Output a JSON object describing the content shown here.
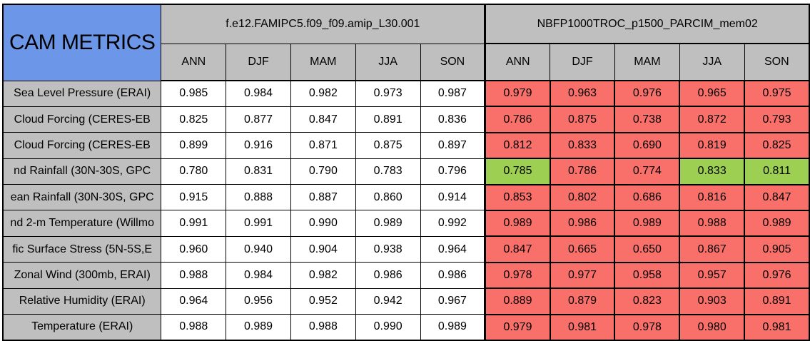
{
  "chart_data": {
    "type": "table",
    "title": "CAM METRICS",
    "column_groups": [
      "f.e12.FAMIPC5.f09_f09.amip_L30.001",
      "NBFP1000TROC_p1500_PARCIM_mem02"
    ],
    "seasons": [
      "ANN",
      "DJF",
      "MAM",
      "JJA",
      "SON"
    ],
    "colors": {
      "corner_blue": "#6C96E8",
      "header_gray": "#BFBFBF",
      "highlight_red": "#F9706A",
      "highlight_green": "#9DCF53",
      "neutral_white": "#FFFFFF"
    },
    "rows": [
      {
        "label": "Sea Level Pressure (ERAI)",
        "run1": [
          "0.985",
          "0.984",
          "0.982",
          "0.973",
          "0.987"
        ],
        "run2": [
          "0.979",
          "0.963",
          "0.976",
          "0.965",
          "0.975"
        ],
        "run2_status": [
          "red",
          "red",
          "red",
          "red",
          "red"
        ]
      },
      {
        "label": "Cloud Forcing (CERES-EB",
        "run1": [
          "0.825",
          "0.877",
          "0.847",
          "0.891",
          "0.836"
        ],
        "run2": [
          "0.786",
          "0.875",
          "0.738",
          "0.872",
          "0.793"
        ],
        "run2_status": [
          "red",
          "red",
          "red",
          "red",
          "red"
        ]
      },
      {
        "label": "Cloud Forcing (CERES-EB",
        "run1": [
          "0.899",
          "0.916",
          "0.871",
          "0.875",
          "0.897"
        ],
        "run2": [
          "0.812",
          "0.833",
          "0.690",
          "0.819",
          "0.825"
        ],
        "run2_status": [
          "red",
          "red",
          "red",
          "red",
          "red"
        ]
      },
      {
        "label": "nd Rainfall (30N-30S, GPC",
        "run1": [
          "0.780",
          "0.831",
          "0.790",
          "0.783",
          "0.796"
        ],
        "run2": [
          "0.785",
          "0.786",
          "0.774",
          "0.833",
          "0.811"
        ],
        "run2_status": [
          "green",
          "red",
          "red",
          "green",
          "green"
        ]
      },
      {
        "label": "ean Rainfall (30N-30S, GPC",
        "run1": [
          "0.915",
          "0.888",
          "0.887",
          "0.860",
          "0.914"
        ],
        "run2": [
          "0.853",
          "0.802",
          "0.686",
          "0.816",
          "0.847"
        ],
        "run2_status": [
          "red",
          "red",
          "red",
          "red",
          "red"
        ]
      },
      {
        "label": "nd 2-m Temperature (Willmo",
        "run1": [
          "0.991",
          "0.991",
          "0.990",
          "0.989",
          "0.992"
        ],
        "run2": [
          "0.989",
          "0.986",
          "0.989",
          "0.988",
          "0.989"
        ],
        "run2_status": [
          "red",
          "red",
          "red",
          "red",
          "red"
        ]
      },
      {
        "label": "fic Surface Stress (5N-5S,E",
        "run1": [
          "0.960",
          "0.940",
          "0.904",
          "0.938",
          "0.964"
        ],
        "run2": [
          "0.847",
          "0.665",
          "0.650",
          "0.867",
          "0.905"
        ],
        "run2_status": [
          "red",
          "red",
          "red",
          "red",
          "red"
        ]
      },
      {
        "label": "Zonal Wind (300mb, ERAI)",
        "run1": [
          "0.988",
          "0.984",
          "0.982",
          "0.986",
          "0.986"
        ],
        "run2": [
          "0.978",
          "0.977",
          "0.958",
          "0.957",
          "0.976"
        ],
        "run2_status": [
          "red",
          "red",
          "red",
          "red",
          "red"
        ]
      },
      {
        "label": "Relative Humidity (ERAI)",
        "run1": [
          "0.964",
          "0.956",
          "0.952",
          "0.942",
          "0.967"
        ],
        "run2": [
          "0.889",
          "0.879",
          "0.823",
          "0.903",
          "0.891"
        ],
        "run2_status": [
          "red",
          "red",
          "red",
          "red",
          "red"
        ]
      },
      {
        "label": "Temperature (ERAI)",
        "run1": [
          "0.988",
          "0.989",
          "0.988",
          "0.990",
          "0.989"
        ],
        "run2": [
          "0.979",
          "0.981",
          "0.978",
          "0.980",
          "0.981"
        ],
        "run2_status": [
          "red",
          "red",
          "red",
          "red",
          "red"
        ]
      }
    ]
  }
}
